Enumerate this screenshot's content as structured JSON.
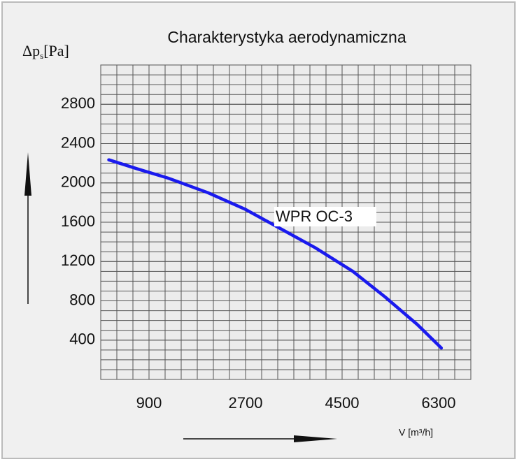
{
  "chart_data": {
    "type": "line",
    "title": "Charakterystyka aerodynamiczna",
    "ylabel": "Δp",
    "ylabel_sub": "s",
    "ylabel_unit": "[Pa]",
    "xlabel": "V [m³/h]",
    "xlim": [
      0,
      6900
    ],
    "xticks": [
      900,
      2700,
      4500,
      6300
    ],
    "ylim": [
      0,
      3200
    ],
    "yticks": [
      400,
      800,
      1200,
      1600,
      2000,
      2400,
      2800
    ],
    "grid": true,
    "x_grid_step": 300,
    "y_grid_step": 100,
    "series": [
      {
        "name": "WPR OC-3",
        "color": "#1a1aee",
        "x": [
          150,
          700,
          1250,
          2000,
          2700,
          3400,
          4000,
          4700,
          5300,
          5900,
          6350
        ],
        "values": [
          2235,
          2140,
          2050,
          1900,
          1730,
          1520,
          1340,
          1100,
          840,
          560,
          320
        ]
      }
    ]
  }
}
